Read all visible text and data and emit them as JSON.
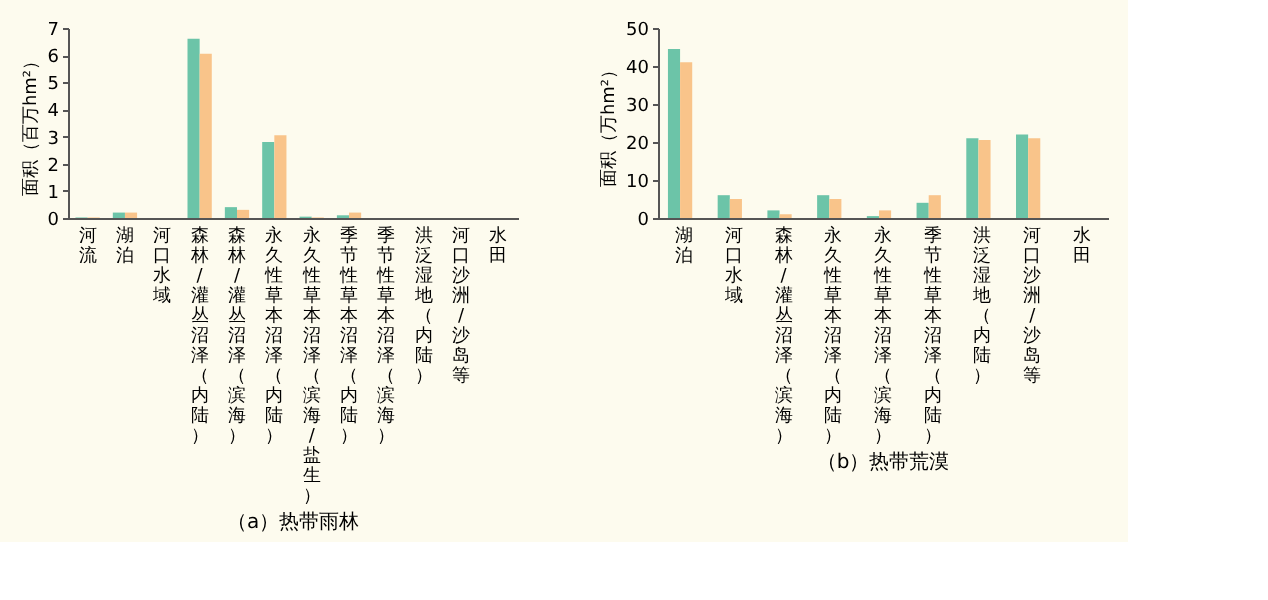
{
  "chart_data": [
    {
      "type": "bar",
      "title": "（a）热带雨林",
      "ylabel": "面积（百万hm²）",
      "categories": [
        "河流",
        "湖泊",
        "河口水域",
        "森林/灌丛沼泽（内陆）",
        "森林/灌丛沼泽（滨海）",
        "永久性草本沼泽（内陆）",
        "永久性草本沼泽（滨海/盐生）",
        "季节性草本沼泽（内陆）",
        "季节性草本沼泽（滨海）",
        "洪泛湿地（内陆）",
        "河口沙洲/沙岛等",
        "水田"
      ],
      "ylim": [
        0,
        7
      ],
      "yticks": [
        0,
        1,
        2,
        3,
        4,
        5,
        6,
        7
      ],
      "grid": false,
      "legend": false,
      "series": [
        {
          "color": "#6cc4a8",
          "values": [
            0.02,
            0.2,
            0,
            6.6,
            0.4,
            2.8,
            0.05,
            0.1,
            0,
            0,
            0,
            0
          ]
        },
        {
          "color": "#f9c48a",
          "values": [
            0.02,
            0.2,
            0,
            6.05,
            0.3,
            3.05,
            0.02,
            0.2,
            0,
            0,
            0,
            0
          ]
        }
      ]
    },
    {
      "type": "bar",
      "title": "（b）热带荒漠",
      "ylabel": "面积（万hm²）",
      "categories": [
        "湖泊",
        "河口水域",
        "森林/灌丛沼泽（滨海）",
        "永久性草本沼泽（内陆）",
        "永久性草本沼泽（滨海）",
        "季节性草本沼泽（内陆）",
        "洪泛湿地（内陆）",
        "河口沙洲/沙岛等",
        "水田"
      ],
      "ylim": [
        0,
        50
      ],
      "yticks": [
        0,
        10,
        20,
        30,
        40,
        50
      ],
      "grid": false,
      "legend": false,
      "series": [
        {
          "color": "#6cc4a8",
          "values": [
            44.5,
            6,
            2,
            6,
            0.5,
            4,
            21,
            22,
            0
          ]
        },
        {
          "color": "#f9c48a",
          "values": [
            41,
            5,
            1,
            5,
            2,
            6,
            20.5,
            21,
            0
          ]
        }
      ]
    }
  ]
}
